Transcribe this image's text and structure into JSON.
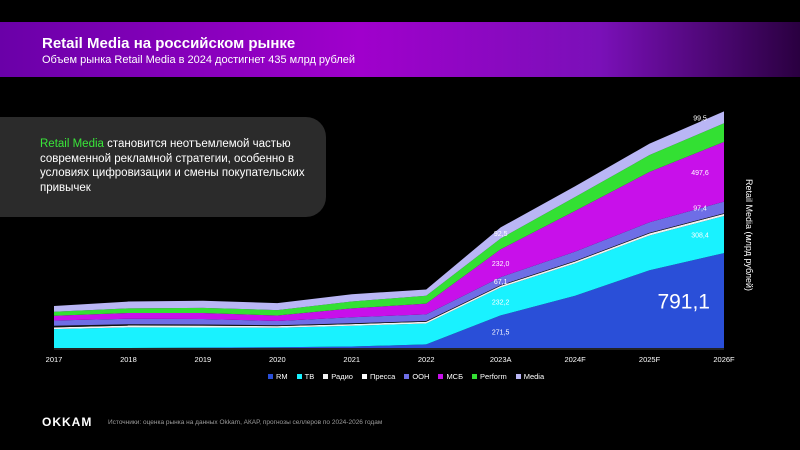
{
  "header": {
    "title": "Retail Media на российском рынке",
    "subtitle": "Объем рынка Retail Media в 2024 достигнет 435 млрд рублей"
  },
  "callout": {
    "accent": "Retail Media",
    "text": " становится неотъемлемой частью современной рекламной стратегии, особенно в условиях цифровизации и смены покупательских привычек"
  },
  "footer": {
    "logo": "OKKAM",
    "source": "Источники: оценка рынка на данных Okkam, АКАР, прогнозы селлеров по 2024-2026 годам"
  },
  "chart_data": {
    "type": "area",
    "stacked": true,
    "categories": [
      "2017",
      "2018",
      "2019",
      "2020",
      "2021",
      "2022",
      "2023A",
      "2024F",
      "2025F",
      "2026F"
    ],
    "ylabel": "Retail Media (млрд рублей)",
    "series": [
      {
        "name": "RM",
        "color": "#2a4fd8",
        "values": [
          0,
          0,
          3,
          6,
          12,
          30,
          271.5,
          435,
          648,
          791.1
        ]
      },
      {
        "name": "ТВ",
        "color": "#19f2ff",
        "values": [
          157,
          172,
          168,
          163,
          173,
          174,
          232.2,
          270,
          290,
          308.4
        ]
      },
      {
        "name": "Радио",
        "color": "#f2f2f2",
        "values": [
          15,
          15,
          15,
          13,
          14,
          15,
          15,
          16,
          17,
          18
        ]
      },
      {
        "name": "Пресса",
        "color": "#121212",
        "values": [
          13,
          11,
          10,
          8,
          7,
          6,
          5,
          5,
          5,
          5
        ]
      },
      {
        "name": "OOH",
        "color": "#6e6ee6",
        "values": [
          44,
          46,
          46,
          35,
          50,
          55,
          67.1,
          77,
          88,
          97.4
        ]
      },
      {
        "name": "МСБ",
        "color": "#c810ea",
        "values": [
          40,
          48,
          50,
          46,
          74,
          90,
          232.0,
          340,
          420,
          497.6
        ]
      },
      {
        "name": "Perform",
        "color": "#33e033",
        "values": [
          33,
          38,
          42,
          45,
          58,
          65,
          90,
          115,
          140,
          155
        ]
      },
      {
        "name": "Media",
        "color": "#b9b6f5",
        "values": [
          48,
          57,
          60,
          58,
          60,
          53,
          92.5,
          90,
          95,
          99.5
        ]
      }
    ],
    "data_labels": [
      {
        "series": "RM",
        "category": "2023A",
        "text": "271,5"
      },
      {
        "series": "ТВ",
        "category": "2023A",
        "text": "232,2"
      },
      {
        "series": "OOH",
        "category": "2023A",
        "text": "67,1"
      },
      {
        "series": "МСБ",
        "category": "2023A",
        "text": "232,0"
      },
      {
        "series": "Media",
        "category": "2023A",
        "text": "92,5"
      },
      {
        "series": "ТВ",
        "category": "2026F",
        "text": "308,4"
      },
      {
        "series": "OOH",
        "category": "2026F",
        "text": "97,4"
      },
      {
        "series": "МСБ",
        "category": "2026F",
        "text": "497,6"
      },
      {
        "series": "Media",
        "category": "2026F",
        "text": "99,5"
      }
    ],
    "big_label": {
      "series": "RM",
      "category": "2026F",
      "text": "791,1"
    }
  }
}
